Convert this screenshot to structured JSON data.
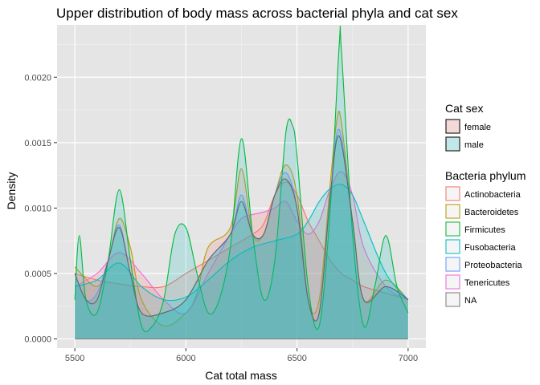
{
  "chart_data": {
    "type": "area",
    "title": "Upper distribution of body mass across bacterial phyla and cat sex",
    "xlabel": "Cat total mass",
    "ylabel": "Density",
    "xlim": [
      5420,
      7080
    ],
    "ylim": [
      -7e-05,
      0.0024
    ],
    "xticks": [
      5500,
      6000,
      6500,
      7000
    ],
    "xtick_labels": [
      "5500",
      "6000",
      "6500",
      "7000"
    ],
    "yticks": [
      0,
      0.0005,
      0.001,
      0.0015,
      0.002
    ],
    "ytick_labels": [
      "0.0000",
      "0.0005",
      "0.0010",
      "0.0015",
      "0.0020"
    ],
    "grid": true,
    "panel_background": "#e5e5e5",
    "legends": [
      {
        "title": "Cat sex",
        "placement": "right",
        "entries": [
          {
            "label": "female",
            "fill": "#f8766d"
          },
          {
            "label": "male",
            "fill": "#00bfc4"
          }
        ]
      },
      {
        "title": "Bacteria phylum",
        "placement": "right",
        "entries": [
          {
            "label": "Actinobacteria",
            "color": "#f8766d"
          },
          {
            "label": "Bacteroidetes",
            "color": "#b79f00"
          },
          {
            "label": "Firmicutes",
            "color": "#00ba38"
          },
          {
            "label": "Fusobacteria",
            "color": "#00bfc4"
          },
          {
            "label": "Proteobacteria",
            "color": "#619cff"
          },
          {
            "label": "Tenericutes",
            "color": "#f564e3"
          },
          {
            "label": "NA",
            "color": "#7f7f7f"
          }
        ]
      }
    ],
    "series": [
      {
        "name": "female",
        "fill": "#f8766d",
        "color": "#f8766d",
        "x": [
          5500,
          5600,
          5700,
          5800,
          5900,
          6000,
          6100,
          6200,
          6300,
          6350,
          6400,
          6450,
          6500,
          6550,
          6600,
          6650,
          6700,
          6750,
          6800,
          6900,
          7000
        ],
        "values": [
          0.0005,
          0.00045,
          0.00042,
          0.0004,
          0.0004,
          0.0005,
          0.0006,
          0.0007,
          0.0008,
          0.00088,
          0.0011,
          0.0012,
          0.0011,
          0.0009,
          0.00075,
          0.0006,
          0.0005,
          0.00045,
          0.0004,
          0.00035,
          0.0003
        ]
      },
      {
        "name": "female",
        "fill": "#f8766d",
        "color": "#b79f00",
        "x": [
          5500,
          5600,
          5650,
          5700,
          5750,
          5800,
          5900,
          6000,
          6050,
          6100,
          6200,
          6250,
          6300,
          6350,
          6400,
          6450,
          6500,
          6550,
          6600,
          6650,
          6680,
          6700,
          6750,
          6800,
          6900,
          7000
        ],
        "values": [
          0.00055,
          0.0004,
          0.0006,
          0.00092,
          0.0007,
          0.0003,
          0.0001,
          0.0002,
          0.00035,
          0.0007,
          0.00085,
          0.0013,
          0.0008,
          0.0008,
          0.0011,
          0.00133,
          0.0011,
          0.0003,
          0.0003,
          0.0012,
          0.00168,
          0.00165,
          0.0009,
          0.0003,
          0.00045,
          0.0003
        ]
      },
      {
        "name": "female",
        "fill": "#f8766d",
        "color": "#f564e3",
        "x": [
          5500,
          5600,
          5700,
          5800,
          5900,
          6000,
          6100,
          6200,
          6250,
          6300,
          6350,
          6400,
          6450,
          6500,
          6550,
          6600,
          6650,
          6700,
          6750,
          6800,
          6900,
          7000
        ],
        "values": [
          0.0004,
          0.0005,
          0.00066,
          0.0005,
          0.0003,
          0.0002,
          0.0005,
          0.0008,
          0.00092,
          0.00095,
          0.00097,
          0.001,
          0.00105,
          0.0009,
          0.0008,
          0.0009,
          0.00115,
          0.00128,
          0.0011,
          0.0007,
          0.0004,
          0.0003
        ]
      },
      {
        "name": "male",
        "fill": "#00bfc4",
        "color": "#00bfc4",
        "x": [
          5500,
          5600,
          5700,
          5800,
          5900,
          6000,
          6100,
          6200,
          6300,
          6400,
          6500,
          6550,
          6600,
          6650,
          6700,
          6750,
          6800,
          6900,
          7000
        ],
        "values": [
          0.0004,
          0.00045,
          0.00058,
          0.0004,
          0.0003,
          0.00032,
          0.00045,
          0.0006,
          0.0007,
          0.00075,
          0.0008,
          0.0009,
          0.00105,
          0.00115,
          0.00118,
          0.0011,
          0.0009,
          0.0005,
          0.0003
        ]
      },
      {
        "name": "male",
        "fill": "#00bfc4",
        "color": "#00ba38",
        "x": [
          5500,
          5520,
          5550,
          5600,
          5650,
          5700,
          5750,
          5800,
          5850,
          5900,
          5950,
          6000,
          6050,
          6100,
          6150,
          6200,
          6250,
          6300,
          6350,
          6400,
          6450,
          6480,
          6500,
          6550,
          6600,
          6650,
          6690,
          6700,
          6750,
          6800,
          6850,
          6900,
          6950,
          7000
        ],
        "values": [
          0.0003,
          0.00079,
          0.0003,
          0.0002,
          0.0006,
          0.00114,
          0.0006,
          0.0001,
          0.0001,
          0.0003,
          0.0008,
          0.00085,
          0.0005,
          0.0002,
          0.0003,
          0.0007,
          0.00153,
          0.0008,
          0.0003,
          0.0006,
          0.00158,
          0.00163,
          0.0014,
          0.0004,
          0.0001,
          0.001,
          0.00225,
          0.0022,
          0.0008,
          0.0001,
          0.0004,
          0.00079,
          0.0004,
          0.0002
        ]
      },
      {
        "name": "male",
        "fill": "#00bfc4",
        "color": "#619cff",
        "x": [
          5500,
          5550,
          5600,
          5650,
          5700,
          5750,
          5800,
          5900,
          6000,
          6100,
          6200,
          6250,
          6300,
          6350,
          6400,
          6450,
          6500,
          6550,
          6600,
          6650,
          6690,
          6750,
          6800,
          6900,
          7000
        ],
        "values": [
          0.0005,
          0.0003,
          0.00035,
          0.0006,
          0.00087,
          0.0005,
          0.0002,
          0.0002,
          0.0003,
          0.0006,
          0.0008,
          0.0011,
          0.0008,
          0.0008,
          0.0011,
          0.00127,
          0.001,
          0.0003,
          0.0002,
          0.0011,
          0.0016,
          0.0009,
          0.0003,
          0.0004,
          0.0003
        ]
      },
      {
        "name": "male",
        "fill": "#00bfc4",
        "color": "#666666",
        "x": [
          5500,
          5550,
          5600,
          5650,
          5700,
          5750,
          5800,
          5900,
          6000,
          6100,
          6200,
          6250,
          6300,
          6350,
          6400,
          6450,
          6500,
          6550,
          6600,
          6650,
          6690,
          6750,
          6800,
          6900,
          7000
        ],
        "values": [
          0.0005,
          0.0003,
          0.0003,
          0.0006,
          0.00085,
          0.0005,
          0.0002,
          0.0002,
          0.0003,
          0.0006,
          0.0008,
          0.00105,
          0.0008,
          0.0008,
          0.0011,
          0.00122,
          0.001,
          0.0003,
          0.0002,
          0.0011,
          0.00155,
          0.0009,
          0.0003,
          0.0004,
          0.0003
        ]
      }
    ]
  }
}
